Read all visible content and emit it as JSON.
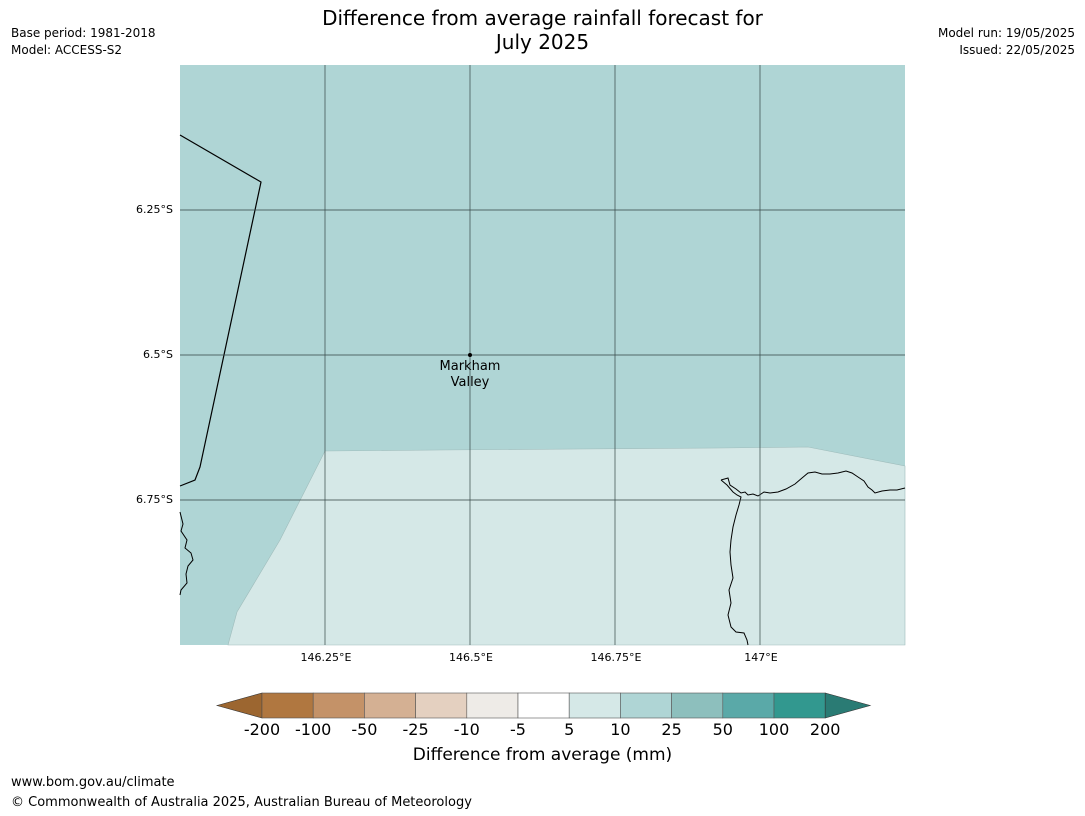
{
  "header": {
    "title_line1": "Difference from average rainfall forecast for",
    "title_line2": "July 2025",
    "base_period": "Base period: 1981-2018",
    "model": "Model: ACCESS-S2",
    "model_run": "Model run: 19/05/2025",
    "issued": "Issued: 22/05/2025"
  },
  "map": {
    "lat_labels": [
      "6.25°S",
      "6.5°S",
      "6.75°S"
    ],
    "lon_labels": [
      "146.25°E",
      "146.5°E",
      "146.75°E",
      "147°E"
    ],
    "place": {
      "line1": "Markham",
      "line2": "Valley"
    },
    "north_region_class": "10 to 25",
    "south_region_class": "5 to 10"
  },
  "colorbar": {
    "ticks": [
      "-200",
      "-100",
      "-50",
      "-25",
      "-10",
      "-5",
      "5",
      "10",
      "25",
      "50",
      "100",
      "200"
    ],
    "label": "Difference from average (mm)",
    "colors": [
      "#9c6630",
      "#b07740",
      "#c49268",
      "#d4b093",
      "#e4d0c0",
      "#eeebe7",
      "#ffffff",
      "#d5e8e7",
      "#afd5d5",
      "#8dbfbd",
      "#5aa9a8",
      "#32988f",
      "#2a7b74"
    ]
  },
  "footer": {
    "url": "www.bom.gov.au/climate",
    "copyright": "© Commonwealth of Australia 2025, Australian Bureau of Meteorology"
  }
}
